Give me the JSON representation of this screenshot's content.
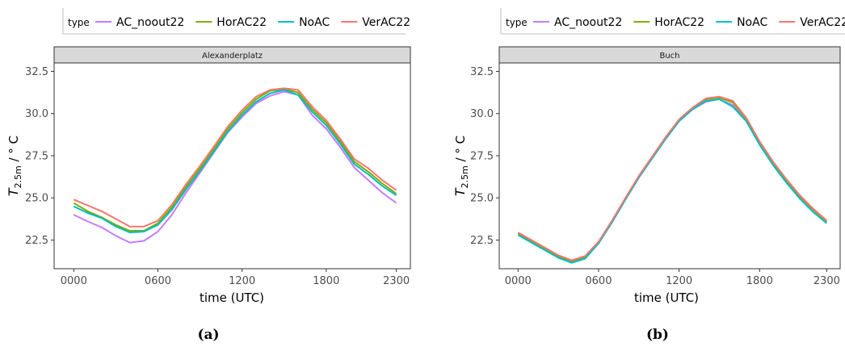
{
  "chart_data": [
    {
      "type": "line",
      "caption": "(a)",
      "panel": "Alexanderplatz",
      "xlabel": "time (UTC)",
      "ylabel_main": "T",
      "ylabel_sub": "2.5m",
      "ylabel_unit": " / ° C",
      "xlim": [
        -1.4,
        24.0
      ],
      "ylim": [
        20.8,
        33.0
      ],
      "xticks": [
        {
          "v": 0,
          "label": "0000"
        },
        {
          "v": 6,
          "label": "0600"
        },
        {
          "v": 12,
          "label": "1200"
        },
        {
          "v": 18,
          "label": "1800"
        },
        {
          "v": 23,
          "label": "2300"
        }
      ],
      "yticks": [
        {
          "v": 22.5,
          "label": "22.5"
        },
        {
          "v": 25,
          "label": "25.0"
        },
        {
          "v": 27.5,
          "label": "27.5"
        },
        {
          "v": 30,
          "label": "30.0"
        },
        {
          "v": 32.5,
          "label": "32.5"
        }
      ],
      "legend": {
        "title": "type",
        "position": "top"
      },
      "x": [
        0,
        1,
        2,
        3,
        4,
        5,
        6,
        7,
        8,
        9,
        10,
        11,
        12,
        13,
        14,
        15,
        16,
        17,
        18,
        19,
        20,
        21,
        22,
        23
      ],
      "series": [
        {
          "name": "AC_noout22",
          "color": "#C77CFF",
          "values": [
            24.0,
            23.6,
            23.25,
            22.75,
            22.35,
            22.45,
            23.0,
            24.0,
            25.3,
            26.5,
            27.7,
            28.9,
            29.8,
            30.6,
            31.05,
            31.3,
            31.1,
            29.9,
            29.1,
            28.0,
            26.8,
            26.05,
            25.3,
            24.7
          ]
        },
        {
          "name": "HorAC22",
          "color": "#7CAE00",
          "values": [
            24.7,
            24.2,
            23.85,
            23.4,
            23.05,
            23.05,
            23.5,
            24.45,
            25.65,
            26.75,
            27.9,
            29.1,
            30.05,
            30.85,
            31.35,
            31.45,
            31.25,
            30.25,
            29.45,
            28.35,
            27.15,
            26.55,
            25.85,
            25.25
          ]
        },
        {
          "name": "NoAC",
          "color": "#00BFC4",
          "values": [
            24.5,
            24.1,
            23.8,
            23.3,
            22.95,
            23.0,
            23.4,
            24.3,
            25.5,
            26.6,
            27.75,
            28.95,
            29.9,
            30.7,
            31.2,
            31.4,
            31.1,
            30.1,
            29.3,
            28.2,
            27.0,
            26.4,
            25.7,
            25.15
          ]
        },
        {
          "name": "VerAC22",
          "color": "#F8766D",
          "values": [
            24.9,
            24.55,
            24.2,
            23.75,
            23.3,
            23.3,
            23.65,
            24.6,
            25.8,
            26.9,
            28.05,
            29.25,
            30.2,
            31.0,
            31.4,
            31.5,
            31.4,
            30.4,
            29.6,
            28.5,
            27.3,
            26.75,
            26.05,
            25.45
          ]
        }
      ]
    },
    {
      "type": "line",
      "caption": "(b)",
      "panel": "Buch",
      "xlabel": "time (UTC)",
      "ylabel_main": "T",
      "ylabel_sub": "2.5m",
      "ylabel_unit": " / ° C",
      "xlim": [
        -1.4,
        24.0
      ],
      "ylim": [
        20.8,
        33.0
      ],
      "xticks": [
        {
          "v": 0,
          "label": "0000"
        },
        {
          "v": 6,
          "label": "0600"
        },
        {
          "v": 12,
          "label": "1200"
        },
        {
          "v": 18,
          "label": "1800"
        },
        {
          "v": 23,
          "label": "2300"
        }
      ],
      "yticks": [
        {
          "v": 22.5,
          "label": "22.5"
        },
        {
          "v": 25,
          "label": "25.0"
        },
        {
          "v": 27.5,
          "label": "27.5"
        },
        {
          "v": 30,
          "label": "30.0"
        },
        {
          "v": 32.5,
          "label": "32.5"
        }
      ],
      "legend": {
        "title": "type",
        "position": "top"
      },
      "x": [
        0,
        1,
        2,
        3,
        4,
        5,
        6,
        7,
        8,
        9,
        10,
        11,
        12,
        13,
        14,
        15,
        16,
        17,
        18,
        19,
        20,
        21,
        22,
        23
      ],
      "series": [
        {
          "name": "AC_noout22",
          "color": "#C77CFF",
          "values": [
            22.85,
            22.4,
            21.95,
            21.5,
            21.2,
            21.45,
            22.3,
            23.55,
            24.9,
            26.2,
            27.35,
            28.5,
            29.55,
            30.25,
            30.7,
            30.85,
            30.5,
            29.6,
            28.2,
            27.0,
            25.95,
            25.0,
            24.2,
            23.5
          ]
        },
        {
          "name": "HorAC22",
          "color": "#7CAE00",
          "values": [
            22.9,
            22.45,
            22.0,
            21.55,
            21.25,
            21.5,
            22.35,
            23.6,
            24.95,
            26.25,
            27.4,
            28.55,
            29.6,
            30.3,
            30.85,
            30.95,
            30.65,
            29.7,
            28.3,
            27.1,
            26.05,
            25.1,
            24.3,
            23.6
          ]
        },
        {
          "name": "NoAC",
          "color": "#00BFC4",
          "values": [
            22.8,
            22.35,
            21.9,
            21.45,
            21.15,
            21.4,
            22.3,
            23.55,
            24.9,
            26.2,
            27.35,
            28.5,
            29.55,
            30.25,
            30.75,
            30.85,
            30.4,
            29.55,
            28.15,
            26.95,
            25.9,
            24.95,
            24.15,
            23.5
          ]
        },
        {
          "name": "VerAC22",
          "color": "#F8766D",
          "values": [
            22.95,
            22.5,
            22.05,
            21.6,
            21.3,
            21.55,
            22.4,
            23.65,
            25.0,
            26.3,
            27.45,
            28.6,
            29.65,
            30.35,
            30.9,
            31.0,
            30.75,
            29.75,
            28.35,
            27.15,
            26.1,
            25.15,
            24.35,
            23.65
          ]
        }
      ]
    }
  ]
}
